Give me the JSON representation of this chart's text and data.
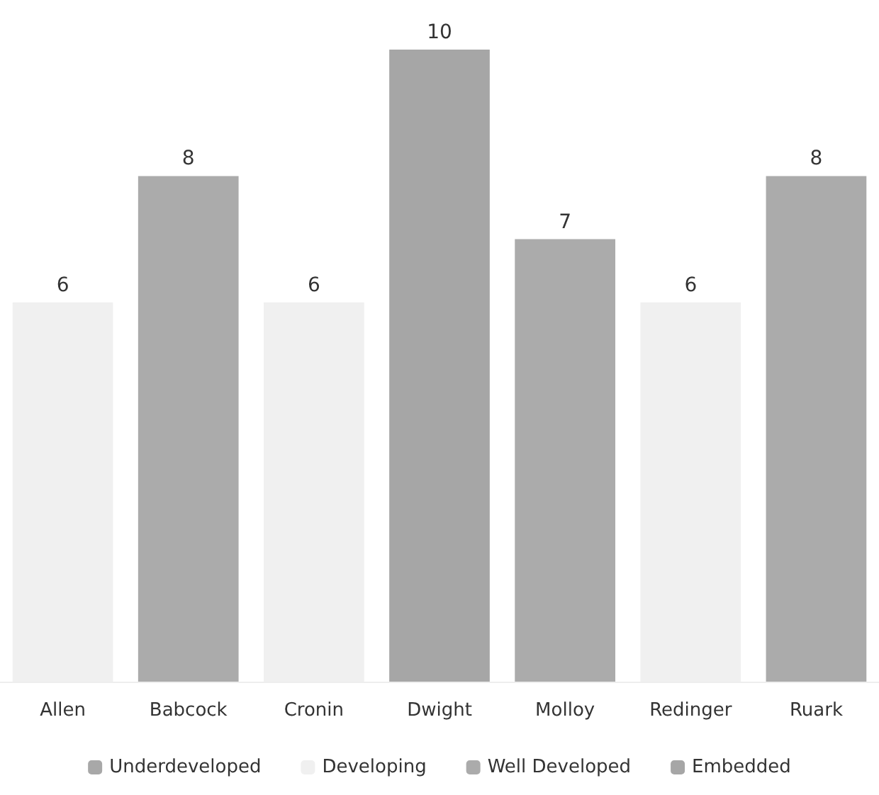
{
  "chart_data": {
    "type": "bar",
    "categories": [
      "Allen",
      "Babcock",
      "Cronin",
      "Dwight",
      "Molloy",
      "Redinger",
      "Ruark"
    ],
    "series": [
      {
        "name": "Underdeveloped",
        "color": "#a8a8a8",
        "values": [
          null,
          null,
          null,
          null,
          null,
          null,
          null
        ]
      },
      {
        "name": "Developing",
        "color": "#f0f0f0",
        "values": [
          6,
          null,
          6,
          null,
          null,
          6,
          null
        ]
      },
      {
        "name": "Well Developed",
        "color": "#ababab",
        "values": [
          null,
          8,
          null,
          null,
          7,
          null,
          8
        ]
      },
      {
        "name": "Embedded",
        "color": "#a6a6a6",
        "values": [
          null,
          null,
          null,
          10,
          null,
          null,
          null
        ]
      }
    ],
    "stacked": true,
    "data_labels": true,
    "legend": "bottom"
  }
}
